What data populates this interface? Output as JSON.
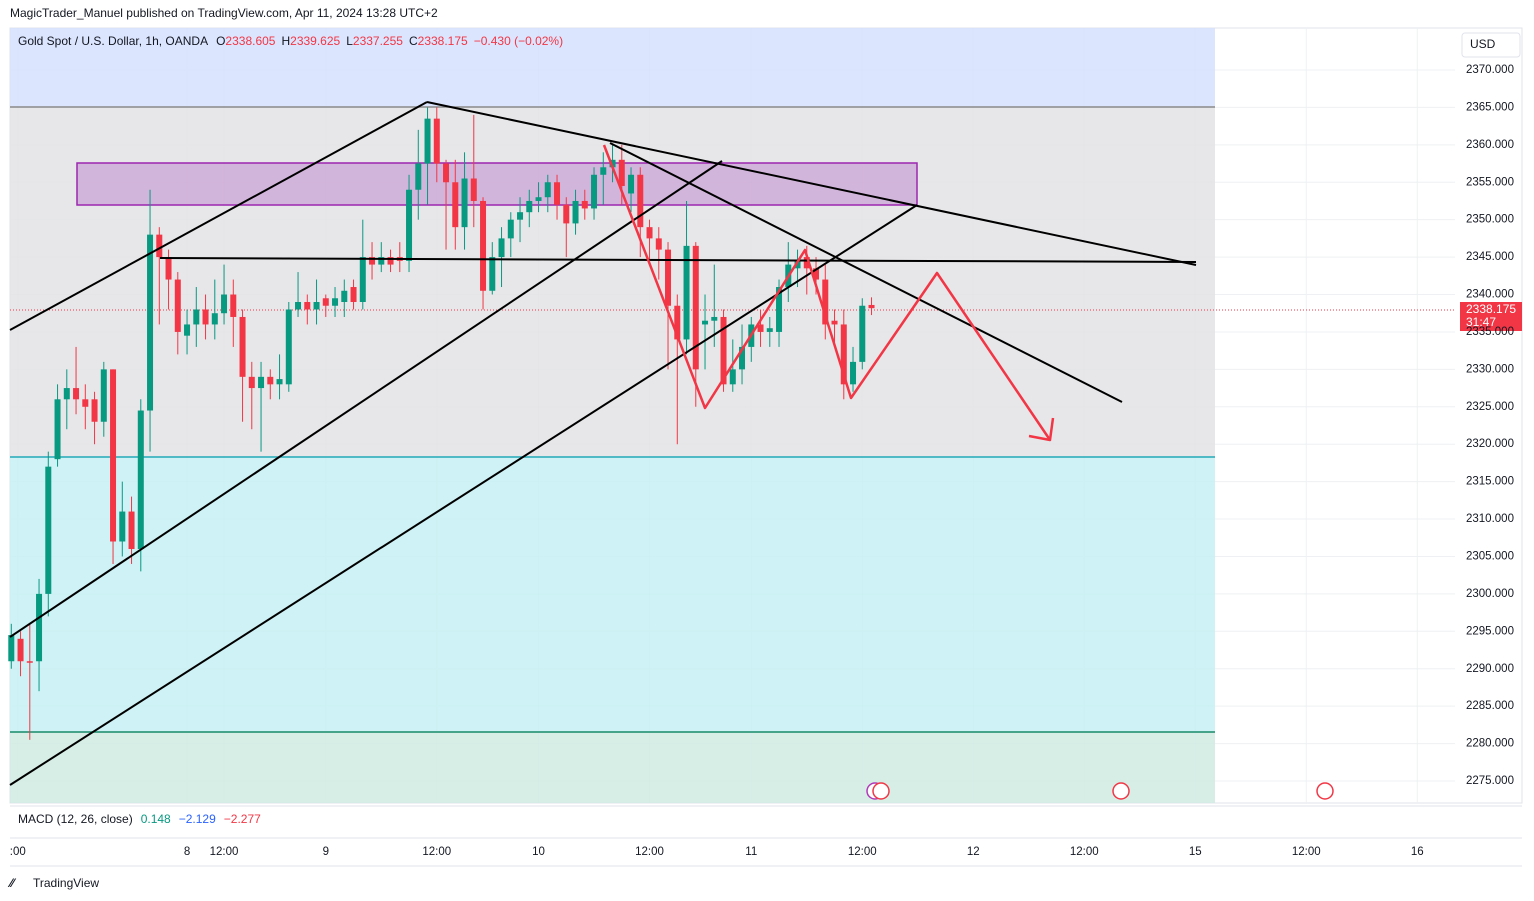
{
  "header": {
    "publisher": "MagicTrader_Manuel published on TradingView.com, Apr 11, 2024 13:28 UTC+2",
    "logo": "TradingView"
  },
  "chart_data": {
    "type": "candlestick",
    "title": "Gold Spot / U.S. Dollar, 1h, OANDA",
    "ohlc_legend": [
      {
        "key": "O",
        "value": "2338.605"
      },
      {
        "key": "H",
        "value": "2339.625"
      },
      {
        "key": "L",
        "value": "2337.255"
      },
      {
        "key": "C",
        "value": "2338.175"
      }
    ],
    "change": "−0.430 (−0.02%)",
    "currency": "USD",
    "last_price_label": "2338.175",
    "countdown": "31:47",
    "indicator": {
      "name": "MACD (12, 26, close)",
      "values": [
        "0.148",
        "−2.129",
        "−2.277"
      ],
      "colors": [
        "#089981",
        "#2962ff",
        "#f23645"
      ]
    },
    "up_color": "#089981",
    "down_color": "#f23645",
    "x": [
      -11,
      -10,
      -9,
      -8,
      -7,
      -6,
      -5,
      -4,
      -3,
      -2,
      -1,
      0,
      1,
      2,
      3,
      4,
      5,
      6,
      7,
      8,
      9,
      10,
      11,
      12,
      13,
      14,
      15,
      16,
      17,
      18,
      19,
      20,
      21,
      22,
      23,
      24,
      25,
      26,
      27,
      28,
      29,
      30,
      31,
      32,
      33,
      34,
      35,
      36,
      37,
      38,
      39,
      40,
      41,
      42,
      43,
      44,
      45,
      46,
      47,
      48,
      49,
      50,
      51,
      52,
      53,
      54,
      55,
      56,
      57,
      58,
      59,
      60,
      61,
      62,
      63,
      64,
      65,
      66,
      67,
      68,
      69,
      70,
      71,
      72,
      73,
      74,
      75,
      76,
      77,
      78,
      79,
      80,
      81,
      82
    ],
    "open": [
      2291,
      2294,
      2291,
      2291,
      2300,
      2318,
      2326,
      2327.5,
      2326,
      2326,
      2323,
      2330,
      2307,
      2311,
      2306,
      2324.5,
      2348,
      2345,
      2342,
      2334.5,
      2336,
      2338,
      2336,
      2337.5,
      2340,
      2337,
      2329,
      2327.5,
      2329,
      2328,
      2328,
      2338,
      2339,
      2338,
      2339.5,
      2338.5,
      2339,
      2341,
      2339,
      2345,
      2344,
      2345,
      2345,
      2344.5,
      2354,
      2357.5,
      2363.5,
      2357.5,
      2355,
      2349,
      2355.5,
      2352.5,
      2340.5,
      2345,
      2347.5,
      2350,
      2351,
      2352.5,
      2353,
      2355,
      2352,
      2349.5,
      2352.5,
      2351.5,
      2356,
      2357,
      2358,
      2353.5,
      2356,
      2349,
      2347.5,
      2346,
      2338.5,
      2334,
      2346.5,
      2336,
      2336.5,
      2337,
      2328,
      2330,
      2333,
      2336,
      2335,
      2335,
      2341,
      2343.5,
      2345,
      2343.5,
      2342,
      2336.5,
      2336,
      2328,
      2331,
      2338.605
    ],
    "high": [
      2296,
      2295,
      2296,
      2302,
      2319,
      2328,
      2330,
      2333,
      2328,
      2327,
      2331,
      2330,
      2315,
      2313,
      2326,
      2354,
      2349,
      2346,
      2343,
      2338,
      2341,
      2340,
      2342,
      2344,
      2342,
      2338,
      2331,
      2331,
      2330,
      2332,
      2339,
      2343,
      2340,
      2342,
      2340,
      2341,
      2342,
      2342,
      2350,
      2347,
      2347,
      2346,
      2347,
      2356,
      2362,
      2365,
      2365,
      2358,
      2358,
      2359,
      2364,
      2353,
      2347,
      2349,
      2351,
      2353,
      2354,
      2355,
      2356,
      2356,
      2353,
      2354,
      2354,
      2357,
      2359,
      2360,
      2360,
      2357,
      2357,
      2350,
      2349,
      2347,
      2340,
      2352.5,
      2347,
      2340,
      2344,
      2338,
      2334,
      2336,
      2337,
      2338,
      2337,
      2342,
      2347,
      2346,
      2346.5,
      2345,
      2344,
      2338,
      2338,
      2333,
      2339.5,
      2339.625
    ],
    "low": [
      2290,
      2289,
      2280.5,
      2287,
      2297,
      2317,
      2322,
      2324,
      2322,
      2320,
      2321,
      2304,
      2305,
      2304,
      2303,
      2319,
      2336,
      2338,
      2332,
      2332,
      2333,
      2334,
      2334,
      2336,
      2333,
      2323,
      2322,
      2319,
      2326,
      2326,
      2327,
      2337,
      2336,
      2336,
      2337,
      2337,
      2337,
      2338,
      2338,
      2342,
      2343,
      2343,
      2343,
      2343,
      2350,
      2352,
      2355,
      2346,
      2346,
      2346,
      2349,
      2338,
      2340,
      2341,
      2345,
      2347,
      2349,
      2351,
      2351,
      2350,
      2345,
      2348,
      2350,
      2350,
      2352,
      2355,
      2352,
      2351,
      2345,
      2344,
      2342,
      2330,
      2320,
      2332,
      2325,
      2330,
      2333,
      2327,
      2327,
      2328,
      2331,
      2333,
      2333,
      2333,
      2339,
      2341,
      2340,
      2340,
      2334,
      2333,
      2326,
      2327,
      2330,
      2337.255
    ],
    "close": [
      2294.5,
      2291,
      2290.8,
      2300,
      2317,
      2326,
      2327.5,
      2326,
      2325,
      2323,
      2330,
      2307,
      2311,
      2306,
      2324.5,
      2348,
      2345,
      2342,
      2335,
      2336,
      2338,
      2336,
      2337.5,
      2340,
      2337,
      2329,
      2327.5,
      2329,
      2328,
      2328.7,
      2338,
      2339,
      2338,
      2339,
      2338.5,
      2339.5,
      2340.5,
      2339,
      2345,
      2344,
      2345,
      2344,
      2344.5,
      2354,
      2357.5,
      2363.5,
      2357.5,
      2355,
      2349,
      2355.5,
      2352.5,
      2340.5,
      2345,
      2347.5,
      2350,
      2351,
      2352.5,
      2353,
      2355,
      2352,
      2349.5,
      2352.5,
      2351.5,
      2356,
      2357,
      2358,
      2354.5,
      2356,
      2349,
      2347.5,
      2346,
      2338.5,
      2334,
      2346.5,
      2330,
      2336.5,
      2337,
      2328,
      2330,
      2333,
      2336,
      2335,
      2335.5,
      2341,
      2344,
      2344.5,
      2343.5,
      2342,
      2336,
      2336,
      2328,
      2331,
      2338.5,
      2338.175
    ],
    "xlim": [
      -11.14,
      145.08
    ],
    "xticks": [
      {
        "value": -10.3,
        "label": ":00"
      },
      8,
      {
        "value": 12,
        "label": "12:00"
      },
      {
        "value": 23,
        "label": "9"
      },
      {
        "value": 35,
        "label": "12:00"
      },
      {
        "value": 46,
        "label": "10"
      },
      {
        "value": 58,
        "label": "12:00"
      },
      {
        "value": 69,
        "label": "11"
      },
      {
        "value": 81,
        "label": "12:00"
      },
      {
        "value": 93,
        "label": "12"
      },
      {
        "value": 105,
        "label": "12:00"
      },
      {
        "value": 117,
        "label": "15"
      },
      {
        "value": 129,
        "label": "12:00"
      },
      {
        "value": 141,
        "label": "16"
      }
    ],
    "ylim": [
      2272.06,
      2375.61
    ],
    "yticks": [
      {
        "value": 2275,
        "label": "2275.000"
      },
      {
        "value": 2280,
        "label": "2280.000"
      },
      {
        "value": 2285,
        "label": "2285.000"
      },
      {
        "value": 2290,
        "label": "2290.000"
      },
      {
        "value": 2295,
        "label": "2295.000"
      },
      {
        "value": 2300,
        "label": "2300.000"
      },
      {
        "value": 2305,
        "label": "2305.000"
      },
      {
        "value": 2310,
        "label": "2310.000"
      },
      {
        "value": 2315,
        "label": "2315.000"
      },
      {
        "value": 2320,
        "label": "2320.000"
      },
      {
        "value": 2325,
        "label": "2325.000"
      },
      {
        "value": 2330,
        "label": "2330.000"
      },
      {
        "value": 2335,
        "label": "2335.000"
      },
      {
        "value": 2340,
        "label": "2340.000"
      },
      {
        "value": 2345,
        "label": "2345.000"
      },
      {
        "value": 2350,
        "label": "2350.000"
      },
      {
        "value": 2355,
        "label": "2355.000"
      },
      {
        "value": 2360,
        "label": "2360.000"
      },
      {
        "value": 2365,
        "label": "2365.000"
      },
      {
        "value": 2370,
        "label": "2370.000"
      }
    ],
    "grid": true
  }
}
